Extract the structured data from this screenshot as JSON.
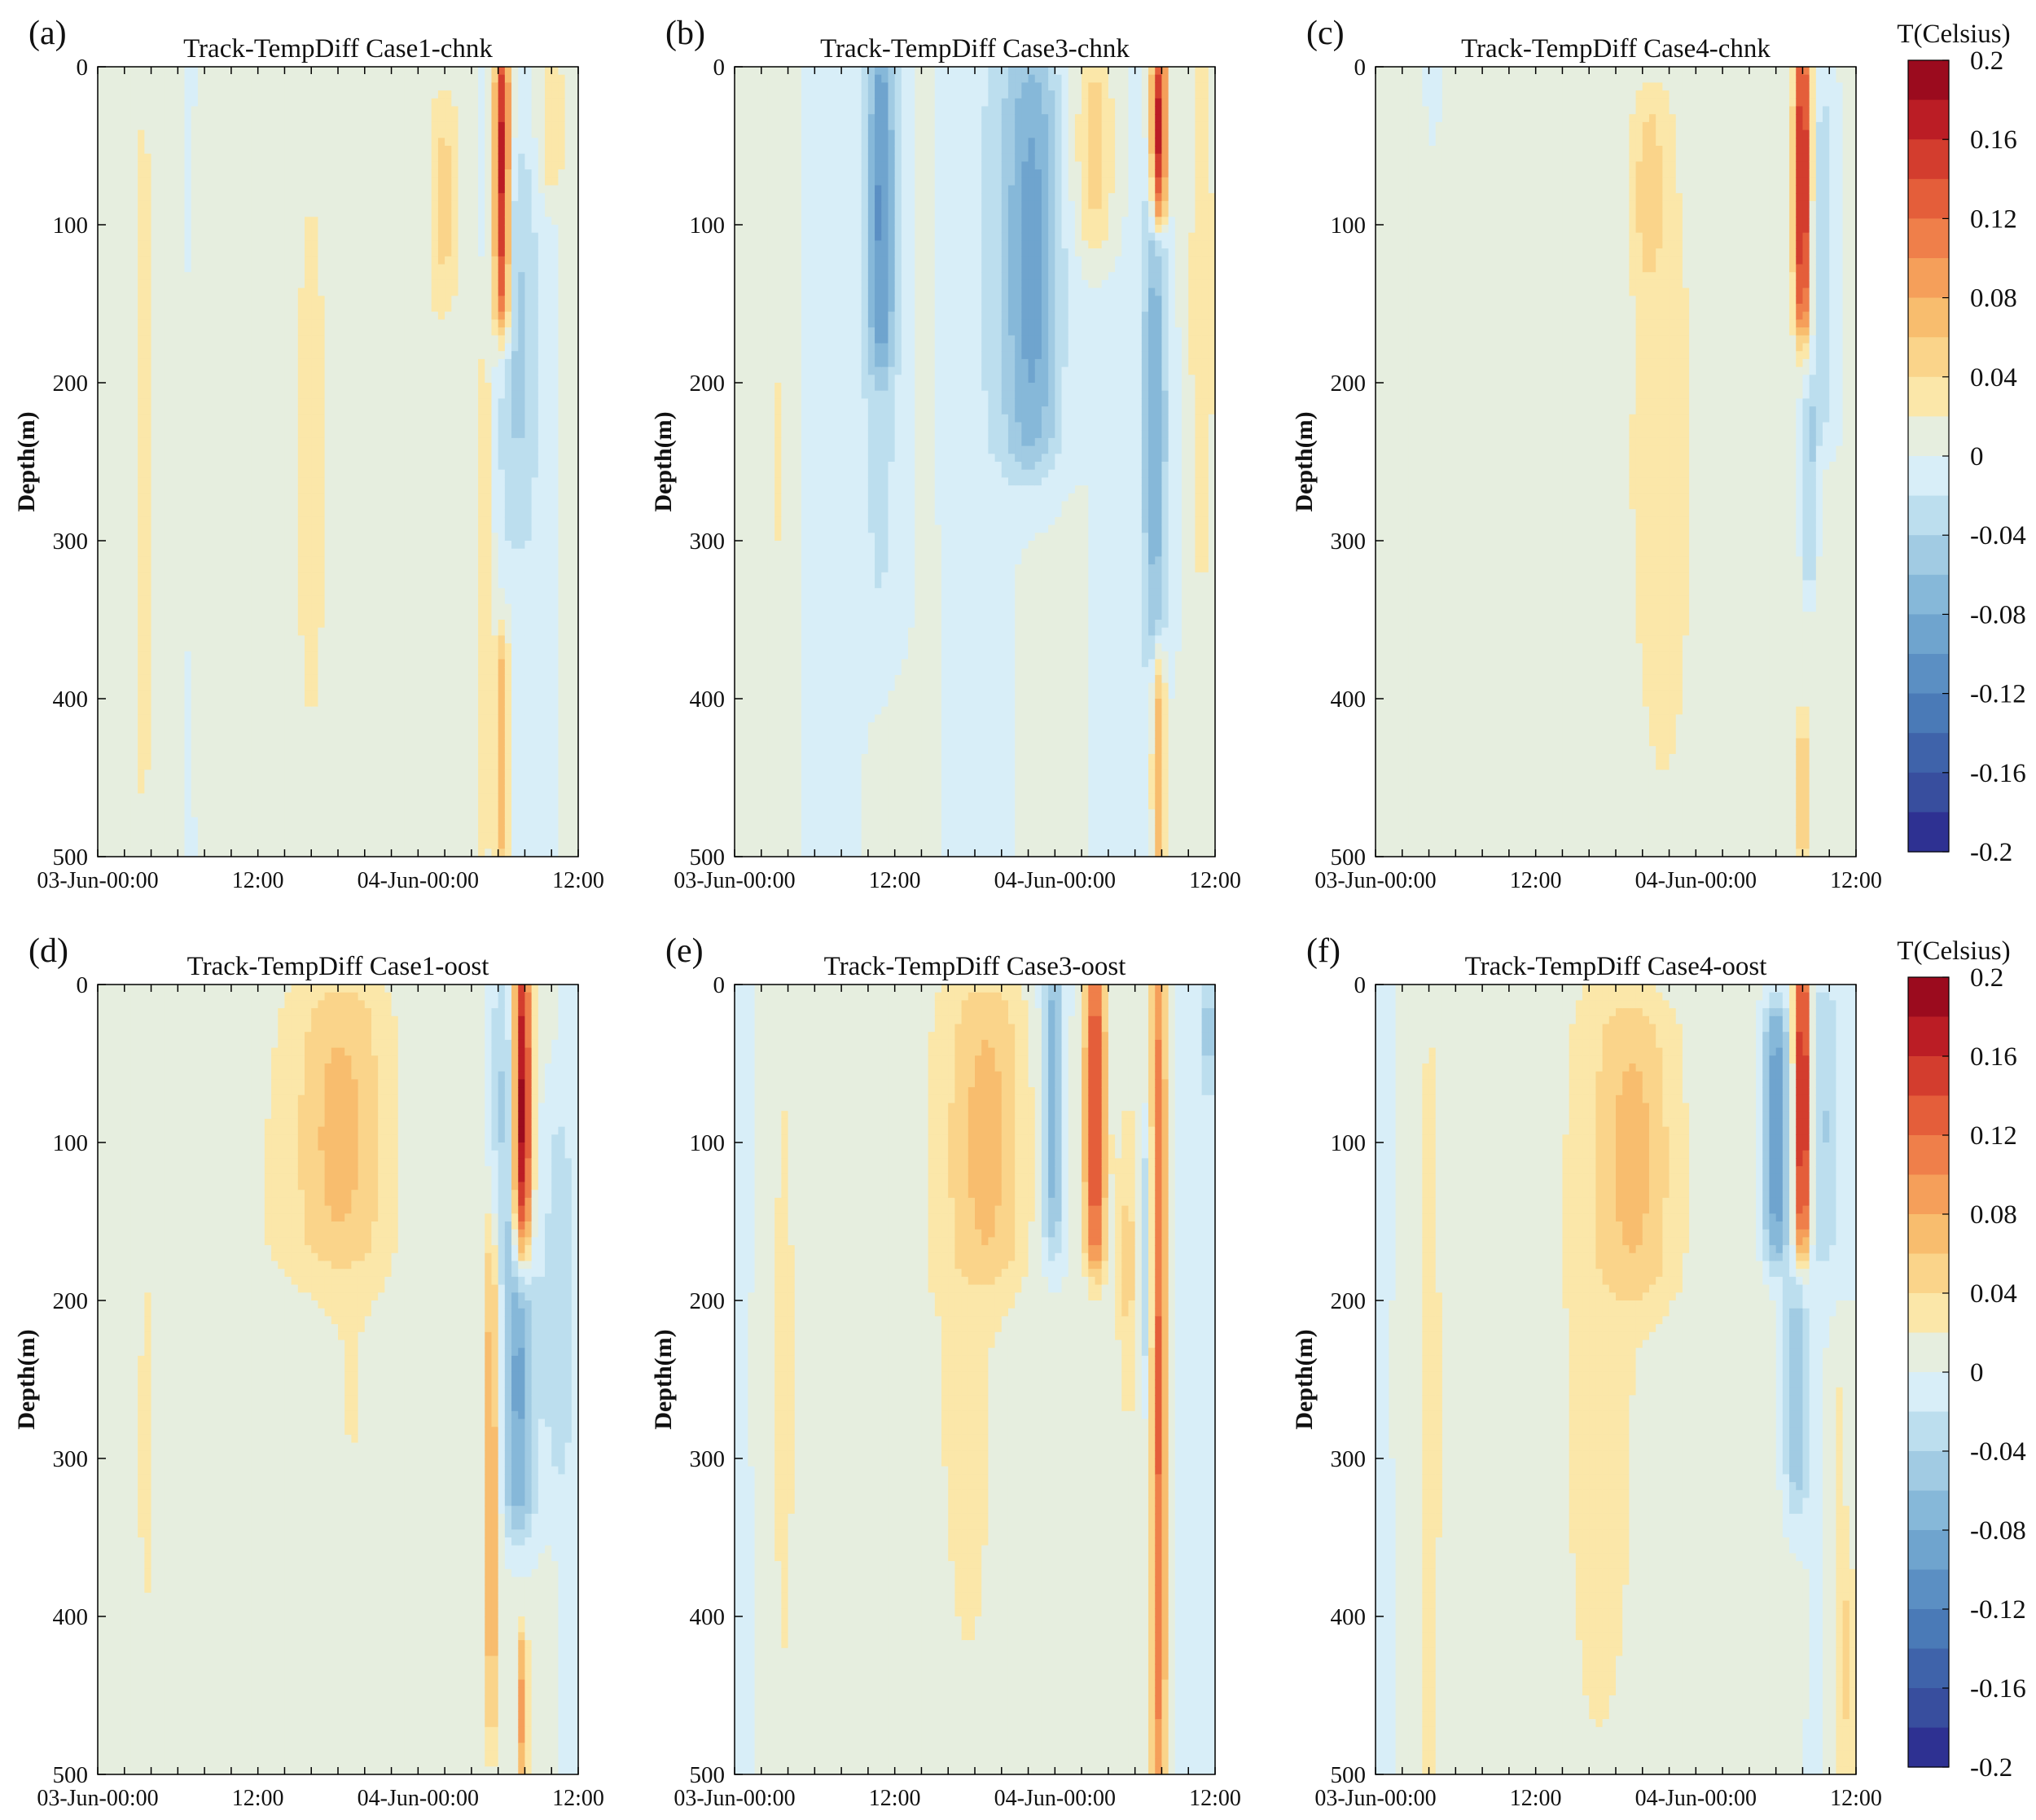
{
  "figure": {
    "colorbar_label": "T(Celsius)",
    "colorbar_ticks": [
      "0.2",
      "0.16",
      "0.12",
      "0.08",
      "0.04",
      "0",
      "-0.04",
      "-0.08",
      "-0.12",
      "-0.16",
      "-0.2"
    ]
  },
  "chart_data": [
    {
      "type": "heatmap",
      "panel": "(a)",
      "title": "Track-TempDiff Case1-chnk",
      "xlabel": "",
      "ylabel": "Depth(m)",
      "x_ticks": [
        "03-Jun-00:00",
        "12:00",
        "04-Jun-00:00",
        "12:00"
      ],
      "y_ticks": [
        "0",
        "100",
        "200",
        "300",
        "400",
        "500"
      ],
      "ylim": [
        0,
        500
      ],
      "x_range_hours": [
        0,
        36
      ],
      "unit": "Celsius",
      "color_range": [
        -0.2,
        0.2
      ],
      "features": [
        {
          "t": 3.5,
          "d0": 0,
          "d1": 500,
          "w": 1.5,
          "v": 0.02
        },
        {
          "t": 10.5,
          "d0": 0,
          "d1": 500,
          "w": 2.5,
          "v": 0.02
        },
        {
          "t": 16.5,
          "d0": 0,
          "d1": 500,
          "w": 3.0,
          "v": 0.02
        },
        {
          "t": 22.5,
          "d0": 0,
          "d1": 500,
          "w": 2.5,
          "v": 0.02
        },
        {
          "t": 26.0,
          "d0": 30,
          "d1": 140,
          "w": 1.0,
          "v": 0.04
        },
        {
          "t": 30.3,
          "d0": 0,
          "d1": 150,
          "w": 0.6,
          "v": 0.18
        },
        {
          "t": 30.3,
          "d0": 370,
          "d1": 500,
          "w": 0.5,
          "v": 0.08
        },
        {
          "t": 29.0,
          "d0": 200,
          "d1": 480,
          "w": 0.6,
          "v": 0.04
        },
        {
          "t": 31.5,
          "d0": 80,
          "d1": 280,
          "w": 1.5,
          "v": -0.04
        },
        {
          "t": 34.0,
          "d0": 0,
          "d1": 70,
          "w": 1.0,
          "v": 0.04
        }
      ]
    },
    {
      "type": "heatmap",
      "panel": "(b)",
      "title": "Track-TempDiff Case3-chnk",
      "xlabel": "",
      "ylabel": "Depth(m)",
      "x_ticks": [
        "03-Jun-00:00",
        "12:00",
        "04-Jun-00:00",
        "12:00"
      ],
      "y_ticks": [
        "0",
        "100",
        "200",
        "300",
        "400",
        "500"
      ],
      "ylim": [
        0,
        500
      ],
      "x_range_hours": [
        0,
        36
      ],
      "unit": "Celsius",
      "color_range": [
        -0.2,
        0.2
      ],
      "features": [
        {
          "t": 3.5,
          "d0": 0,
          "d1": 500,
          "w": 1.0,
          "v": 0.02
        },
        {
          "t": 11.0,
          "d0": 0,
          "d1": 170,
          "w": 1.0,
          "v": -0.08
        },
        {
          "t": 11.0,
          "d0": 0,
          "d1": 330,
          "w": 1.8,
          "v": -0.03
        },
        {
          "t": 22.5,
          "d0": 20,
          "d1": 230,
          "w": 2.0,
          "v": -0.07
        },
        {
          "t": 21.0,
          "d0": 0,
          "d1": 230,
          "w": 3.0,
          "v": -0.03
        },
        {
          "t": 27.0,
          "d0": 0,
          "d1": 100,
          "w": 1.5,
          "v": 0.05
        },
        {
          "t": 31.8,
          "d0": 0,
          "d1": 90,
          "w": 0.6,
          "v": 0.18
        },
        {
          "t": 31.5,
          "d0": 100,
          "d1": 350,
          "w": 1.0,
          "v": -0.07
        },
        {
          "t": 31.8,
          "d0": 380,
          "d1": 500,
          "w": 0.5,
          "v": 0.08
        },
        {
          "t": 35.0,
          "d0": 0,
          "d1": 300,
          "w": 1.0,
          "v": 0.03
        }
      ]
    },
    {
      "type": "heatmap",
      "panel": "(c)",
      "title": "Track-TempDiff Case4-chnk",
      "xlabel": "",
      "ylabel": "Depth(m)",
      "x_ticks": [
        "03-Jun-00:00",
        "12:00",
        "04-Jun-00:00",
        "12:00"
      ],
      "y_ticks": [
        "0",
        "100",
        "200",
        "300",
        "400",
        "500"
      ],
      "ylim": [
        0,
        500
      ],
      "x_range_hours": [
        0,
        36
      ],
      "unit": "Celsius",
      "color_range": [
        -0.2,
        0.2
      ],
      "features": [
        {
          "t": 4.0,
          "d0": 250,
          "d1": 500,
          "w": 0.8,
          "v": 0.02
        },
        {
          "t": 19.0,
          "d0": 0,
          "d1": 500,
          "w": 12.0,
          "v": 0.02
        },
        {
          "t": 20.5,
          "d0": 40,
          "d1": 120,
          "w": 1.0,
          "v": 0.04
        },
        {
          "t": 32.0,
          "d0": 0,
          "d1": 150,
          "w": 0.6,
          "v": 0.18
        },
        {
          "t": 33.5,
          "d0": 30,
          "d1": 220,
          "w": 1.2,
          "v": -0.04
        },
        {
          "t": 32.5,
          "d0": 220,
          "d1": 320,
          "w": 0.6,
          "v": -0.05
        },
        {
          "t": 32.0,
          "d0": 420,
          "d1": 500,
          "w": 0.5,
          "v": 0.05
        }
      ]
    },
    {
      "type": "heatmap",
      "panel": "(d)",
      "title": "Track-TempDiff Case1-oost",
      "xlabel": "",
      "ylabel": "Depth(m)",
      "x_ticks": [
        "03-Jun-00:00",
        "12:00",
        "04-Jun-00:00",
        "12:00"
      ],
      "y_ticks": [
        "0",
        "100",
        "200",
        "300",
        "400",
        "500"
      ],
      "ylim": [
        0,
        500
      ],
      "x_range_hours": [
        0,
        36
      ],
      "unit": "Celsius",
      "color_range": [
        -0.2,
        0.2
      ],
      "features": [
        {
          "t": 3.5,
          "d0": 100,
          "d1": 500,
          "w": 1.5,
          "v": 0.02
        },
        {
          "t": 15.0,
          "d0": 0,
          "d1": 500,
          "w": 10.0,
          "v": 0.02
        },
        {
          "t": 18.0,
          "d0": 20,
          "d1": 160,
          "w": 3.5,
          "v": 0.05
        },
        {
          "t": 31.8,
          "d0": 0,
          "d1": 160,
          "w": 0.7,
          "v": 0.19
        },
        {
          "t": 30.5,
          "d0": 0,
          "d1": 160,
          "w": 1.0,
          "v": -0.05
        },
        {
          "t": 31.5,
          "d0": 170,
          "d1": 330,
          "w": 1.2,
          "v": -0.09
        },
        {
          "t": 29.5,
          "d0": 180,
          "d1": 450,
          "w": 0.6,
          "v": 0.08
        },
        {
          "t": 31.8,
          "d0": 420,
          "d1": 500,
          "w": 0.4,
          "v": 0.08
        },
        {
          "t": 34.5,
          "d0": 100,
          "d1": 300,
          "w": 1.5,
          "v": -0.03
        }
      ]
    },
    {
      "type": "heatmap",
      "panel": "(e)",
      "title": "Track-TempDiff Case3-oost",
      "xlabel": "",
      "ylabel": "Depth(m)",
      "x_ticks": [
        "03-Jun-00:00",
        "12:00",
        "04-Jun-00:00",
        "12:00"
      ],
      "y_ticks": [
        "0",
        "100",
        "200",
        "300",
        "400",
        "500"
      ],
      "ylim": [
        0,
        500
      ],
      "x_range_hours": [
        0,
        36
      ],
      "unit": "Celsius",
      "color_range": [
        -0.2,
        0.2
      ],
      "features": [
        {
          "t": 3.5,
          "d0": 0,
          "d1": 500,
          "w": 1.5,
          "v": 0.02
        },
        {
          "t": 15.0,
          "d0": 0,
          "d1": 500,
          "w": 9.0,
          "v": 0.02
        },
        {
          "t": 19.0,
          "d0": 20,
          "d1": 170,
          "w": 3.0,
          "v": 0.05
        },
        {
          "t": 23.8,
          "d0": 0,
          "d1": 150,
          "w": 0.8,
          "v": -0.08
        },
        {
          "t": 27.0,
          "d0": 0,
          "d1": 160,
          "w": 0.8,
          "v": 0.15
        },
        {
          "t": 29.5,
          "d0": 100,
          "d1": 250,
          "w": 0.8,
          "v": 0.04
        },
        {
          "t": 31.8,
          "d0": 0,
          "d1": 500,
          "w": 0.6,
          "v": 0.12
        },
        {
          "t": 30.8,
          "d0": 100,
          "d1": 250,
          "w": 0.5,
          "v": -0.04
        },
        {
          "t": 35.5,
          "d0": 0,
          "d1": 60,
          "w": 0.5,
          "v": -0.05
        }
      ]
    },
    {
      "type": "heatmap",
      "panel": "(f)",
      "title": "Track-TempDiff Case4-oost",
      "xlabel": "",
      "ylabel": "Depth(m)",
      "x_ticks": [
        "03-Jun-00:00",
        "12:00",
        "04-Jun-00:00",
        "12:00"
      ],
      "y_ticks": [
        "0",
        "100",
        "200",
        "300",
        "400",
        "500"
      ],
      "ylim": [
        0,
        500
      ],
      "x_range_hours": [
        0,
        36
      ],
      "unit": "Celsius",
      "color_range": [
        -0.2,
        0.2
      ],
      "features": [
        {
          "t": 4.0,
          "d0": 60,
          "d1": 500,
          "w": 1.0,
          "v": 0.02
        },
        {
          "t": 17.5,
          "d0": 0,
          "d1": 500,
          "w": 11.0,
          "v": 0.02
        },
        {
          "t": 19.5,
          "d0": 30,
          "d1": 180,
          "w": 3.0,
          "v": 0.05
        },
        {
          "t": 30.0,
          "d0": 30,
          "d1": 160,
          "w": 1.0,
          "v": -0.11
        },
        {
          "t": 32.0,
          "d0": 0,
          "d1": 150,
          "w": 0.6,
          "v": 0.19
        },
        {
          "t": 33.5,
          "d0": 20,
          "d1": 160,
          "w": 1.2,
          "v": -0.04
        },
        {
          "t": 31.5,
          "d0": 200,
          "d1": 320,
          "w": 0.9,
          "v": -0.06
        },
        {
          "t": 34.8,
          "d0": 260,
          "d1": 500,
          "w": 0.8,
          "v": 0.03
        },
        {
          "t": 35.5,
          "d0": 380,
          "d1": 500,
          "w": 0.5,
          "v": 0.03
        }
      ]
    }
  ]
}
